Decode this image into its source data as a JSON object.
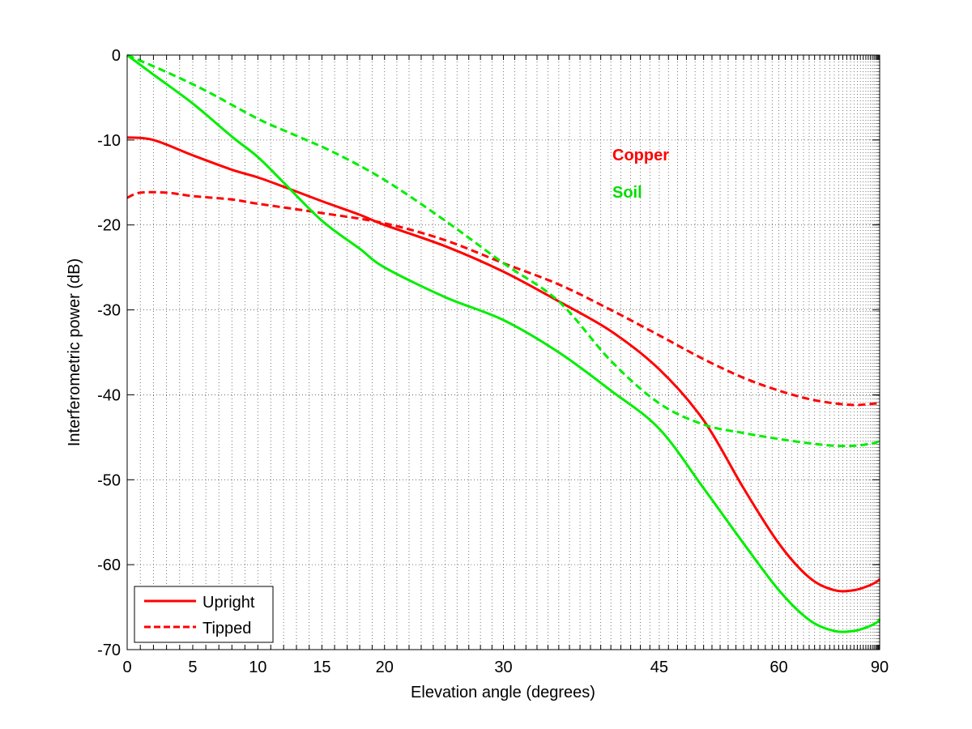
{
  "chart_data": {
    "type": "line",
    "title": "",
    "xlabel": "Elevation angle (degrees)",
    "ylabel": "Interferometric power (dB)",
    "xlim": [
      0,
      90
    ],
    "ylim": [
      -70,
      0
    ],
    "x_scale": "sin(elevation)",
    "grid": true,
    "legend_placement": "bottom-left",
    "xticks": [
      0,
      5,
      10,
      15,
      20,
      30,
      45,
      60,
      90
    ],
    "yticks": [
      0,
      -10,
      -20,
      -30,
      -40,
      -50,
      -60,
      -70
    ],
    "legend": [
      {
        "label": "Upright",
        "style": "solid"
      },
      {
        "label": "Tipped",
        "style": "dashed"
      }
    ],
    "annotations": [
      {
        "text": "Copper",
        "color": "#ff0000"
      },
      {
        "text": "Soil",
        "color": "#00dd00"
      }
    ],
    "colors": {
      "copper": "#ff0000",
      "soil": "#00ee00"
    },
    "series": [
      {
        "material": "Copper",
        "antenna": "Upright",
        "color": "#ff0000",
        "dash": "solid",
        "points": [
          [
            0,
            -9.7
          ],
          [
            2,
            -10
          ],
          [
            5,
            -11.8
          ],
          [
            8,
            -13.5
          ],
          [
            10,
            -14.4
          ],
          [
            12,
            -15.5
          ],
          [
            15,
            -17.2
          ],
          [
            18,
            -18.8
          ],
          [
            20,
            -20
          ],
          [
            25,
            -22.5
          ],
          [
            30,
            -25.5
          ],
          [
            35,
            -29
          ],
          [
            40,
            -32.5
          ],
          [
            45,
            -37
          ],
          [
            50,
            -43
          ],
          [
            55,
            -51
          ],
          [
            60,
            -57.5
          ],
          [
            65,
            -61.5
          ],
          [
            70,
            -63
          ],
          [
            75,
            -63
          ],
          [
            80,
            -62.5
          ],
          [
            85,
            -62
          ],
          [
            90,
            -61.7
          ]
        ]
      },
      {
        "material": "Copper",
        "antenna": "Tipped",
        "color": "#ff0000",
        "dash": "dashed",
        "points": [
          [
            0,
            -16.8
          ],
          [
            1,
            -16.2
          ],
          [
            3,
            -16.2
          ],
          [
            5,
            -16.6
          ],
          [
            8,
            -17
          ],
          [
            10,
            -17.5
          ],
          [
            15,
            -18.6
          ],
          [
            20,
            -19.8
          ],
          [
            25,
            -21.8
          ],
          [
            30,
            -24.5
          ],
          [
            35,
            -27
          ],
          [
            40,
            -30
          ],
          [
            45,
            -33
          ],
          [
            50,
            -35.8
          ],
          [
            55,
            -38
          ],
          [
            60,
            -39.5
          ],
          [
            65,
            -40.5
          ],
          [
            70,
            -41
          ],
          [
            75,
            -41.2
          ],
          [
            80,
            -41.1
          ],
          [
            85,
            -41
          ],
          [
            90,
            -40.8
          ]
        ]
      },
      {
        "material": "Soil",
        "antenna": "Upright",
        "color": "#00ee00",
        "dash": "solid",
        "points": [
          [
            0,
            0
          ],
          [
            2,
            -2.3
          ],
          [
            5,
            -5.7
          ],
          [
            8,
            -9.6
          ],
          [
            10,
            -12
          ],
          [
            12,
            -15
          ],
          [
            15,
            -19.5
          ],
          [
            18,
            -22.8
          ],
          [
            20,
            -25
          ],
          [
            25,
            -28.5
          ],
          [
            30,
            -31.2
          ],
          [
            35,
            -35
          ],
          [
            40,
            -39.5
          ],
          [
            45,
            -44
          ],
          [
            50,
            -51
          ],
          [
            55,
            -57.5
          ],
          [
            60,
            -63
          ],
          [
            65,
            -66.5
          ],
          [
            70,
            -67.8
          ],
          [
            75,
            -67.8
          ],
          [
            80,
            -67.3
          ],
          [
            85,
            -66.8
          ],
          [
            90,
            -66.4
          ]
        ]
      },
      {
        "material": "Soil",
        "antenna": "Tipped",
        "color": "#00ee00",
        "dash": "dashed",
        "points": [
          [
            0,
            0
          ],
          [
            3,
            -2
          ],
          [
            6,
            -4.2
          ],
          [
            10,
            -7.5
          ],
          [
            13,
            -9.5
          ],
          [
            16,
            -11.5
          ],
          [
            20,
            -14.7
          ],
          [
            25,
            -19.5
          ],
          [
            30,
            -24.5
          ],
          [
            35,
            -29
          ],
          [
            40,
            -36
          ],
          [
            45,
            -41
          ],
          [
            50,
            -43.5
          ],
          [
            55,
            -44.5
          ],
          [
            60,
            -45.2
          ],
          [
            65,
            -45.7
          ],
          [
            70,
            -46
          ],
          [
            75,
            -46
          ],
          [
            80,
            -45.8
          ],
          [
            85,
            -45.6
          ],
          [
            90,
            -45.2
          ]
        ]
      }
    ]
  }
}
